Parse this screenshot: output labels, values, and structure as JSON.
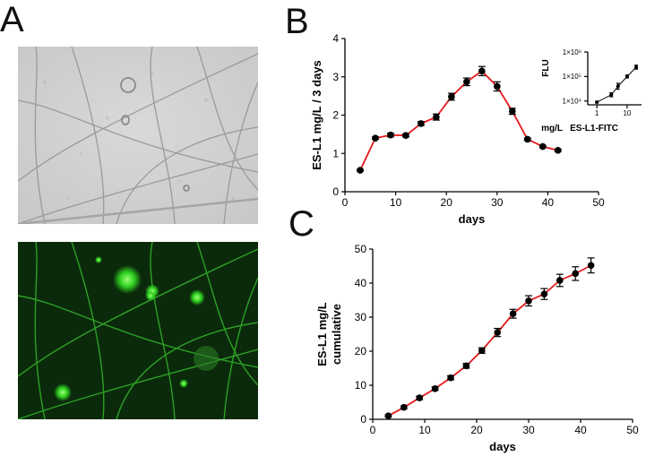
{
  "panels": {
    "a": "A",
    "b": "B",
    "c": "C"
  },
  "chart_data": [
    {
      "id": "B",
      "type": "line",
      "xlabel": "days",
      "ylabel": "ES-L1 mg/L / 3 days",
      "xlim": [
        0,
        50
      ],
      "ylim": [
        0,
        4
      ],
      "xticks": [
        0,
        10,
        20,
        30,
        40,
        50
      ],
      "yticks": [
        0,
        1,
        2,
        3,
        4
      ],
      "line_color": "#e41a1c",
      "marker_color": "#000000",
      "x": [
        3,
        6,
        9,
        12,
        15,
        18,
        21,
        24,
        27,
        30,
        33,
        36,
        39,
        42
      ],
      "y": [
        0.56,
        1.4,
        1.48,
        1.47,
        1.78,
        1.95,
        2.48,
        2.87,
        3.15,
        2.75,
        2.1,
        1.37,
        1.18,
        1.08
      ],
      "err": [
        0.02,
        0.03,
        0.05,
        0.04,
        0.05,
        0.08,
        0.09,
        0.1,
        0.12,
        0.12,
        0.08,
        0.03,
        0.03,
        0.03
      ]
    },
    {
      "id": "B-inset",
      "type": "line",
      "xlabel": "mg/L   ES-L1-FITC",
      "ylabel": "FLU",
      "xscale": "log",
      "yscale": "log",
      "xlim": [
        0.5,
        30
      ],
      "ylim": [
        7000,
        1000000
      ],
      "xticks": [
        1,
        10
      ],
      "xtick_labels": [
        "1",
        "10"
      ],
      "yticks": [
        10000,
        100000,
        1000000
      ],
      "ytick_labels": [
        "1×10⁴",
        "1×10⁵",
        "1×10⁶"
      ],
      "line_color": "#000000",
      "x": [
        1,
        3,
        5,
        10,
        20
      ],
      "y": [
        9000,
        18000,
        40000,
        100000,
        240000
      ],
      "err_log": [
        0.03,
        0.08,
        0.12,
        0.06,
        0.08
      ]
    },
    {
      "id": "C",
      "type": "line",
      "xlabel": "days",
      "ylabel": "ES-L1 mg/L cumulative",
      "ylabel_lines": [
        "ES-L1 mg/L",
        "cumulative"
      ],
      "xlim": [
        0,
        50
      ],
      "ylim": [
        0,
        50
      ],
      "xticks": [
        0,
        10,
        20,
        30,
        40,
        50
      ],
      "yticks": [
        0,
        10,
        20,
        30,
        40,
        50
      ],
      "line_color": "#e41a1c",
      "marker_color": "#000000",
      "x": [
        3,
        6,
        9,
        12,
        15,
        18,
        21,
        24,
        27,
        30,
        33,
        36,
        39,
        42
      ],
      "y": [
        1.0,
        3.5,
        6.3,
        9.0,
        12.2,
        15.7,
        20.2,
        25.5,
        31.0,
        34.8,
        36.8,
        40.8,
        42.8,
        45.2
      ],
      "err": [
        0.3,
        0.4,
        0.5,
        0.5,
        0.6,
        0.7,
        0.8,
        1.2,
        1.3,
        1.5,
        1.6,
        1.8,
        2.0,
        2.2
      ]
    }
  ]
}
